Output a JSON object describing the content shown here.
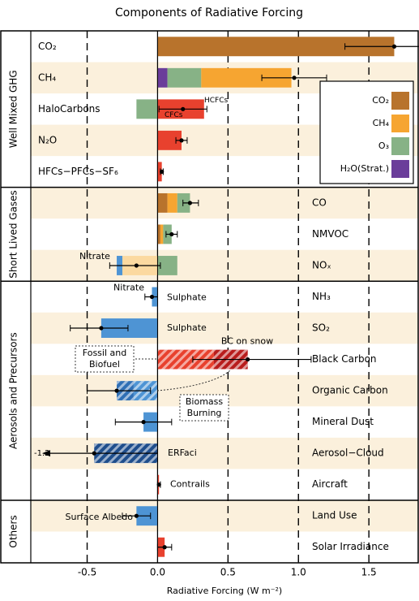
{
  "chart_data": {
    "type": "stacked-horizontal-bar",
    "title": "Components of Radiative Forcing",
    "x_label": "Radiative Forcing (W m⁻²)",
    "xlim": [
      -0.9,
      1.85
    ],
    "xticks": [
      {
        "value": -0.5,
        "label": "-0.5"
      },
      {
        "value": 0,
        "label": "0.0"
      },
      {
        "value": 0.5,
        "label": "0.5"
      },
      {
        "value": 1,
        "label": "1.0"
      },
      {
        "value": 1.5,
        "label": "1.5"
      }
    ],
    "grid": true,
    "series": [
      {
        "name": "CO₂",
        "color": "#b8732c"
      },
      {
        "name": "CH₄",
        "color": "#f6a531"
      },
      {
        "name": "O₃",
        "color": "#87b286"
      },
      {
        "name": "H₂O(Strat.)",
        "color": "#6a3d9a"
      }
    ],
    "groups": [
      {
        "name": "Well Mixed GHG",
        "rows": [
          {
            "label": "CO₂",
            "segments": [
              {
                "value": 1.68,
                "color": "#b8732c"
              }
            ],
            "best_estimate": 1.68,
            "range": [
              1.33,
              2.03
            ],
            "notes": []
          },
          {
            "label": "CH₄",
            "segments": [
              {
                "value": 0.07,
                "color": "#6a3d9a"
              },
              {
                "value": 0.24,
                "color": "#87b286"
              },
              {
                "value": 0.64,
                "color": "#f6a531"
              }
            ],
            "best_estimate": 0.97,
            "range": [
              0.74,
              1.2
            ],
            "notes": []
          },
          {
            "label": "HaloCarbons",
            "segments": [
              {
                "value": -0.15,
                "color": "#87b286"
              },
              {
                "value": 0.33,
                "color": "#e8412e"
              }
            ],
            "best_estimate": 0.18,
            "range": [
              0.01,
              0.35
            ],
            "notes": [
              {
                "text": "HCFCs",
                "color": "#b81d1d"
              },
              {
                "text": "CFCs",
                "color": "#ffffff"
              }
            ]
          },
          {
            "label": "N₂O",
            "segments": [
              {
                "value": 0.17,
                "color": "#e8412e"
              }
            ],
            "best_estimate": 0.17,
            "range": [
              0.13,
              0.21
            ],
            "notes": []
          },
          {
            "label": "HFCs−PFCs−SF₆",
            "segments": [
              {
                "value": 0.03,
                "color": "#e8412e"
              }
            ],
            "best_estimate": 0.03,
            "range": [
              0.02,
              0.04
            ],
            "notes": []
          }
        ]
      },
      {
        "name": "Short Lived Gases",
        "rows": [
          {
            "label": "CO",
            "segments": [
              {
                "value": 0.07,
                "color": "#b8732c"
              },
              {
                "value": 0.07,
                "color": "#f6a531"
              },
              {
                "value": 0.09,
                "color": "#87b286"
              }
            ],
            "best_estimate": 0.23,
            "range": [
              0.18,
              0.29
            ],
            "notes": []
          },
          {
            "label": "NMVOC",
            "segments": [
              {
                "value": 0.02,
                "color": "#b8732c"
              },
              {
                "value": 0.02,
                "color": "#f6a531"
              },
              {
                "value": 0.06,
                "color": "#87b286"
              }
            ],
            "best_estimate": 0.1,
            "range": [
              0.06,
              0.14
            ],
            "notes": []
          },
          {
            "label": "NOₓ",
            "segments": [
              {
                "value": -0.25,
                "color": "#fbd9a0"
              },
              {
                "value": -0.04,
                "color": "#4e94d4"
              },
              {
                "value": 0.14,
                "color": "#87b286"
              }
            ],
            "best_estimate": -0.15,
            "range": [
              -0.34,
              0.02
            ],
            "notes": [
              {
                "text": "Nitrate",
                "color": "#4e94d4"
              }
            ]
          }
        ]
      },
      {
        "name": "Aerosols and Precursors",
        "rows": [
          {
            "label": "NH₃",
            "segments": [
              {
                "value": -0.04,
                "color": "#4e94d4"
              }
            ],
            "best_estimate": -0.04,
            "range": [
              -0.09,
              0
            ],
            "notes": [
              {
                "text": "Nitrate",
                "color": "#4e94d4"
              },
              {
                "text": "Sulphate",
                "color": "#e8412e"
              }
            ]
          },
          {
            "label": "SO₂",
            "segments": [
              {
                "value": -0.4,
                "color": "#4e94d4"
              }
            ],
            "best_estimate": -0.4,
            "range": [
              -0.62,
              -0.21
            ],
            "notes": [
              {
                "text": "Sulphate",
                "color": "#4e94d4"
              }
            ]
          },
          {
            "label": "Black Carbon",
            "segments": [
              {
                "value": 0.4,
                "color": "#e8412e",
                "hatch": true
              },
              {
                "value": 0.24,
                "color": "#b81d1d",
                "hatch": true
              }
            ],
            "best_estimate": 0.64,
            "range": [
              0.25,
              1.09
            ],
            "notes": [
              {
                "text": "BC on snow",
                "color": "#e8412e"
              }
            ]
          },
          {
            "label": "Organic Carbon",
            "segments": [
              {
                "value": -0.17,
                "color": "#4e94d4",
                "hatch": true
              },
              {
                "value": -0.12,
                "color": "#2f6fb5",
                "hatch": true
              }
            ],
            "best_estimate": -0.29,
            "range": [
              -0.5,
              -0.05
            ],
            "notes": []
          },
          {
            "label": "Mineral Dust",
            "segments": [
              {
                "value": -0.1,
                "color": "#4e94d4"
              }
            ],
            "best_estimate": -0.1,
            "range": [
              -0.3,
              0.1
            ],
            "notes": []
          },
          {
            "label": "Aerosol−Cloud",
            "segments": [
              {
                "value": -0.45,
                "color": "#1f4e8c",
                "hatch": true
              }
            ],
            "best_estimate": -0.45,
            "range": [
              -1.2,
              0
            ],
            "notes": [
              {
                "text": "ERFaci",
                "color": "#4e94d4"
              },
              {
                "text": "-1.2",
                "color": "#000000"
              }
            ]
          },
          {
            "label": "Aircraft",
            "segments": [
              {
                "value": 0.01,
                "color": "#e8412e"
              }
            ],
            "best_estimate": 0.01,
            "range": [
              0,
              0.02
            ],
            "notes": [
              {
                "text": "Contrails",
                "color": "#e8412e"
              }
            ]
          }
        ]
      },
      {
        "name": "Others",
        "rows": [
          {
            "label": "Land Use",
            "segments": [
              {
                "value": -0.15,
                "color": "#4e94d4"
              }
            ],
            "best_estimate": -0.15,
            "range": [
              -0.25,
              -0.05
            ],
            "notes": [
              {
                "text": "Surface Albedo",
                "color": "#4e94d4"
              }
            ]
          },
          {
            "label": "Solar Irradiance",
            "segments": [
              {
                "value": 0.05,
                "color": "#e8412e"
              }
            ],
            "best_estimate": 0.05,
            "range": [
              0,
              0.1
            ],
            "notes": []
          }
        ]
      }
    ],
    "annotations": [
      {
        "lines": [
          "Fossil and",
          "Biofuel"
        ],
        "color": "#e8412e"
      },
      {
        "lines": [
          "Biomass",
          "Burning"
        ],
        "color": "#b81d1d"
      }
    ]
  }
}
